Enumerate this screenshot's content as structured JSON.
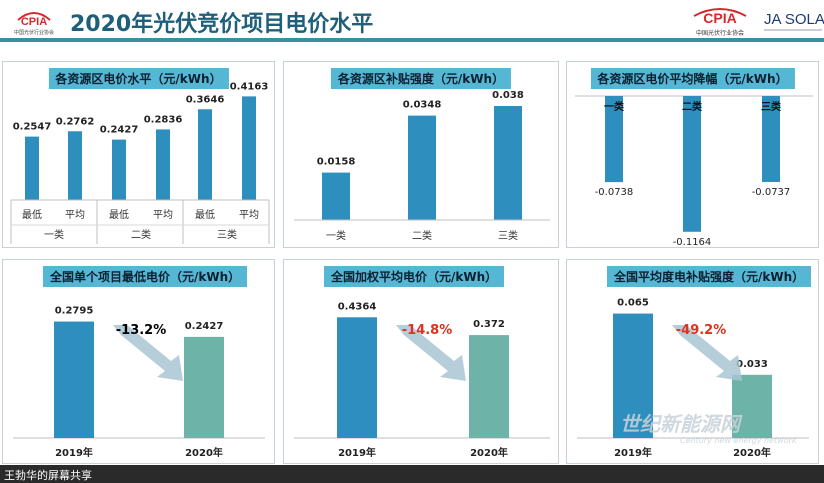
{
  "header": {
    "title": "2020年光伏竞价项目电价水平",
    "logo_left_text": "CPIA",
    "logo_left_sub": "中国光伏行业协会",
    "logo_right_cpia": "CPIA",
    "logo_right_sub": "中国光伏行业协会",
    "logo_ja": "JA SOLA",
    "colors": {
      "title": "#1f5f7a",
      "rule": "#3a8e9e",
      "logo_red": "#d8282c"
    }
  },
  "colors": {
    "bar_blue": "#2e8fbf",
    "bar_green": "#6db3a8",
    "pct_black": "#000000",
    "pct_red": "#e0301e",
    "title_bg": "#56b7d4"
  },
  "panels": {
    "p1": {
      "title": "各资源区电价水平（元/kWh）"
    },
    "p2": {
      "title": "各资源区补贴强度（元/kWh）"
    },
    "p3": {
      "title": "各资源区电价平均降幅（元/kWh）"
    },
    "p4": {
      "title": "全国单个项目最低电价（元/kWh）",
      "change": "-13.2%"
    },
    "p5": {
      "title": "全国加权平均电价（元/kWh）",
      "change": "-14.8%"
    },
    "p6": {
      "title": "全国平均度电补贴强度（元/kWh）",
      "change": "-49.2%"
    }
  },
  "chart_data": [
    {
      "type": "bar",
      "title": "各资源区电价水平（元/kWh）",
      "groups": [
        "一类",
        "二类",
        "三类"
      ],
      "categories": [
        "最低",
        "平均",
        "最低",
        "平均",
        "最低",
        "平均"
      ],
      "value_labels": [
        "0.2547",
        "0.2762",
        "0.2427",
        "0.2836",
        "0.3646",
        "0.4163"
      ],
      "values": [
        0.2547,
        0.2762,
        0.2427,
        0.2836,
        0.3646,
        0.4163
      ],
      "ylim": [
        0,
        0.45
      ]
    },
    {
      "type": "bar",
      "title": "各资源区补贴强度（元/kWh）",
      "categories": [
        "一类",
        "二类",
        "三类"
      ],
      "value_labels": [
        "0.0158",
        "0.0348",
        "0.038"
      ],
      "values": [
        0.0158,
        0.0348,
        0.038
      ],
      "ylim": [
        0,
        0.04
      ]
    },
    {
      "type": "bar",
      "title": "各资源区电价平均降幅（元/kWh）",
      "categories": [
        "一类",
        "二类",
        "三类"
      ],
      "value_labels": [
        "-0.0738",
        "-0.1164",
        "-0.0737"
      ],
      "values": [
        -0.0738,
        -0.1164,
        -0.0737
      ],
      "ylim": [
        -0.12,
        0
      ]
    },
    {
      "type": "bar",
      "title": "全国单个项目最低电价（元/kWh）",
      "categories": [
        "2019年",
        "2020年"
      ],
      "value_labels": [
        "0.2795",
        "0.2427"
      ],
      "values": [
        0.2795,
        0.2427
      ],
      "ylim": [
        0,
        0.3
      ]
    },
    {
      "type": "bar",
      "title": "全国加权平均电价（元/kWh）",
      "categories": [
        "2019年",
        "2020年"
      ],
      "value_labels": [
        "0.4364",
        "0.372"
      ],
      "values": [
        0.4364,
        0.372
      ],
      "ylim": [
        0,
        0.47
      ]
    },
    {
      "type": "bar",
      "title": "全国平均度电补贴强度（元/kWh）",
      "categories": [
        "2019年",
        "2020年"
      ],
      "value_labels": [
        "0.065",
        "0.033"
      ],
      "values": [
        0.065,
        0.033
      ],
      "ylim": [
        0,
        0.07
      ]
    }
  ],
  "footer": {
    "screen_share": "王勃华的屏幕共享",
    "watermark": "世纪新能源网",
    "watermark_sub": "Century new energy network"
  }
}
